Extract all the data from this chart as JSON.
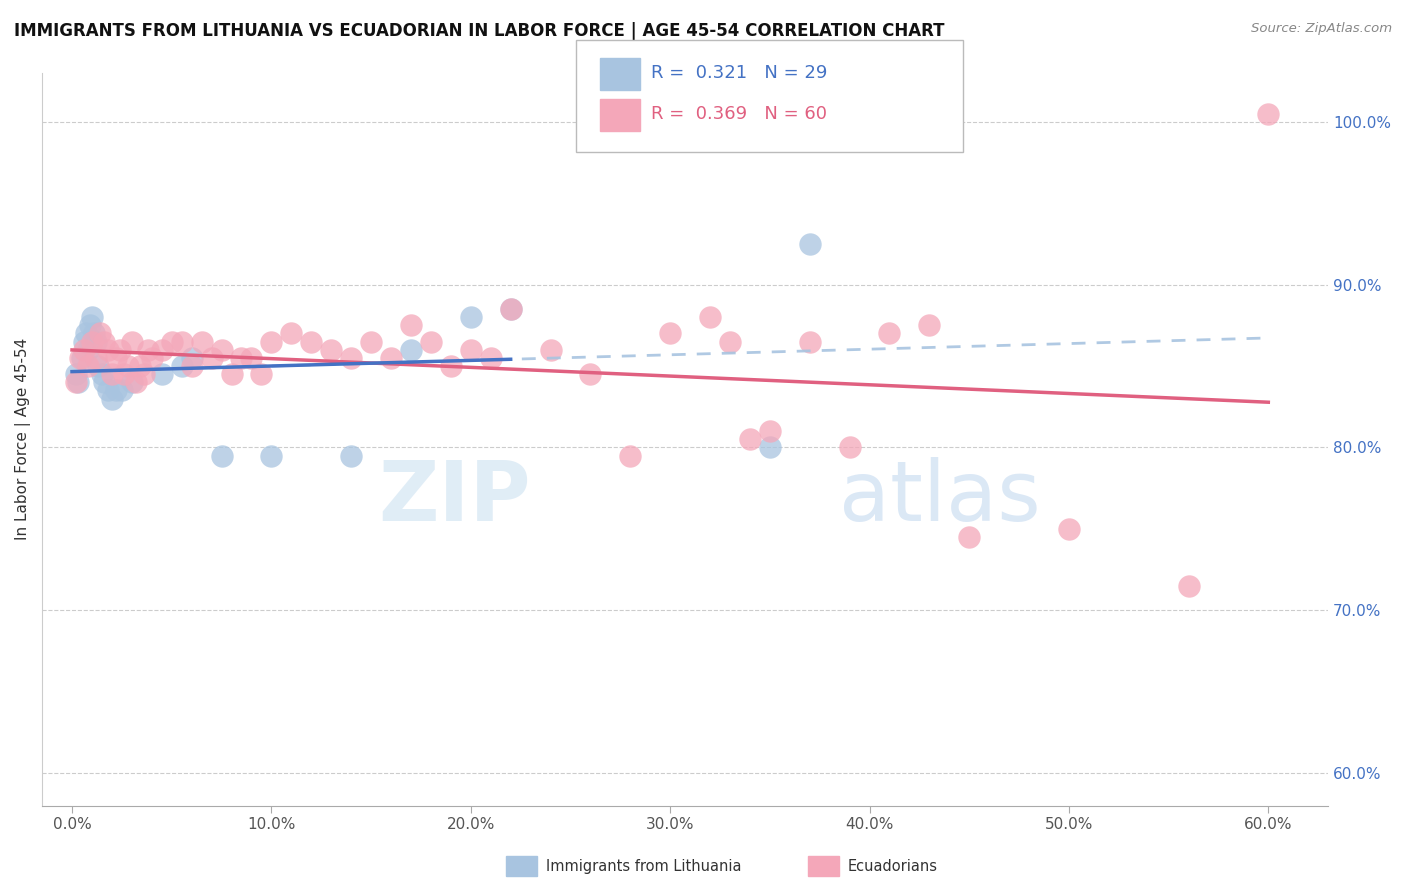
{
  "title": "IMMIGRANTS FROM LITHUANIA VS ECUADORIAN IN LABOR FORCE | AGE 45-54 CORRELATION CHART",
  "source": "Source: ZipAtlas.com",
  "ylabel": "In Labor Force | Age 45-54",
  "R_blue": 0.321,
  "N_blue": 29,
  "R_pink": 0.369,
  "N_pink": 60,
  "blue_color": "#a8c4e0",
  "pink_color": "#f4a7b9",
  "blue_line_color": "#4472c4",
  "pink_line_color": "#e06080",
  "watermark_zip": "ZIP",
  "watermark_atlas": "atlas",
  "x_ticks": [
    0,
    10,
    20,
    30,
    40,
    50,
    60
  ],
  "y_ticks_right": [
    100,
    90,
    80,
    70,
    60
  ],
  "xlim": [
    -1.5,
    63
  ],
  "ylim": [
    58,
    103
  ],
  "blue_x": [
    0.2,
    0.3,
    0.5,
    0.6,
    0.7,
    0.8,
    0.9,
    1.0,
    1.1,
    1.2,
    1.3,
    1.5,
    1.6,
    1.8,
    2.0,
    2.2,
    2.5,
    3.0,
    4.5,
    5.5,
    6.0,
    7.5,
    10.0,
    14.0,
    17.0,
    20.0,
    22.0,
    35.0,
    37.0
  ],
  "blue_y": [
    84.5,
    84.0,
    85.5,
    86.5,
    87.0,
    86.0,
    87.5,
    88.0,
    87.0,
    86.5,
    85.0,
    84.5,
    84.0,
    83.5,
    83.0,
    83.5,
    83.5,
    84.0,
    84.5,
    85.0,
    85.5,
    79.5,
    79.5,
    79.5,
    86.0,
    88.0,
    88.5,
    80.0,
    92.5
  ],
  "pink_x": [
    0.2,
    0.4,
    0.6,
    0.8,
    1.0,
    1.2,
    1.4,
    1.6,
    1.8,
    2.0,
    2.2,
    2.4,
    2.6,
    2.8,
    3.0,
    3.2,
    3.4,
    3.6,
    3.8,
    4.0,
    4.5,
    5.0,
    5.5,
    6.0,
    6.5,
    7.0,
    7.5,
    8.0,
    8.5,
    9.0,
    9.5,
    10.0,
    11.0,
    12.0,
    13.0,
    14.0,
    15.0,
    16.0,
    17.0,
    18.0,
    19.0,
    20.0,
    21.0,
    22.0,
    24.0,
    26.0,
    28.0,
    30.0,
    32.0,
    33.0,
    34.0,
    35.0,
    37.0,
    39.0,
    41.0,
    43.0,
    45.0,
    50.0,
    56.0,
    60.0
  ],
  "pink_y": [
    84.0,
    85.5,
    86.0,
    85.0,
    86.5,
    85.5,
    87.0,
    86.5,
    86.0,
    84.5,
    85.5,
    86.0,
    84.5,
    85.0,
    86.5,
    84.0,
    85.0,
    84.5,
    86.0,
    85.5,
    86.0,
    86.5,
    86.5,
    85.0,
    86.5,
    85.5,
    86.0,
    84.5,
    85.5,
    85.5,
    84.5,
    86.5,
    87.0,
    86.5,
    86.0,
    85.5,
    86.5,
    85.5,
    87.5,
    86.5,
    85.0,
    86.0,
    85.5,
    88.5,
    86.0,
    84.5,
    79.5,
    87.0,
    88.0,
    86.5,
    80.5,
    81.0,
    86.5,
    80.0,
    87.0,
    87.5,
    74.5,
    75.0,
    71.5,
    100.5
  ]
}
